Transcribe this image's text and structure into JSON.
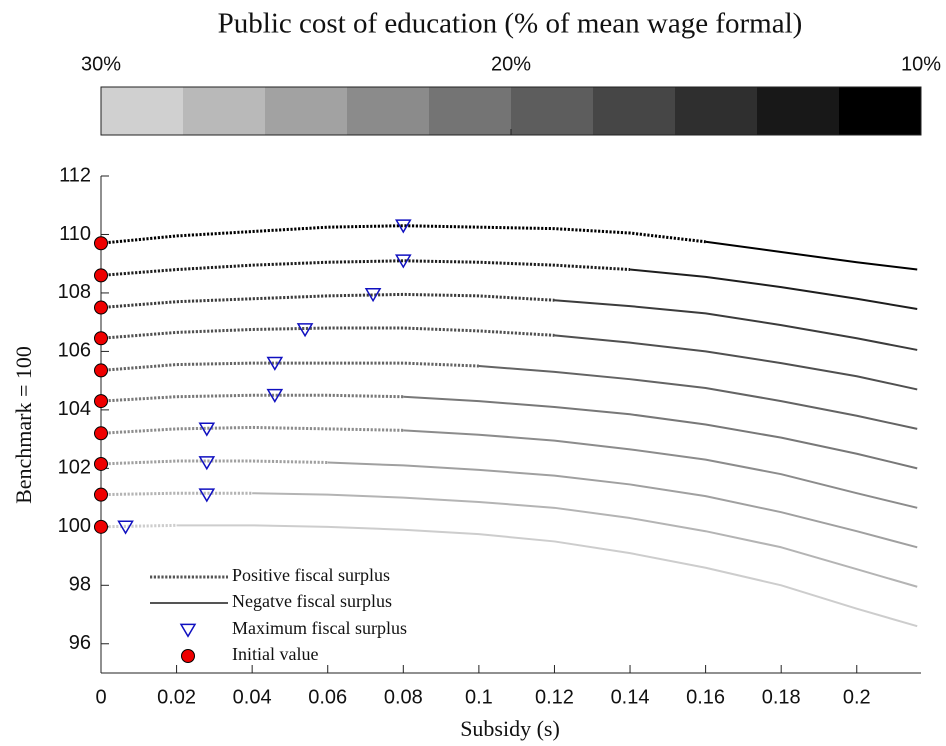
{
  "chart_data": {
    "type": "line",
    "colorbar": {
      "title": "Public cost of education (% of mean wage formal)",
      "lim": [
        30,
        10
      ],
      "ticks": [
        {
          "value": 30,
          "label": "30%"
        },
        {
          "value": 20,
          "label": "20%"
        },
        {
          "value": 10,
          "label": "10%"
        }
      ],
      "colors": [
        "#d0d0d0",
        "#b9b9b9",
        "#a2a2a2",
        "#8b8b8b",
        "#747474",
        "#5d5d5d",
        "#464646",
        "#2f2f2f",
        "#181818",
        "#000000"
      ]
    },
    "xlabel": "Subsidy (s)",
    "ylabel": "Benchmark = 100",
    "xlim": [
      0,
      0.217
    ],
    "ylim": [
      95,
      112
    ],
    "xticks": [
      0,
      0.02,
      0.04,
      0.06,
      0.08,
      0.1,
      0.12,
      0.14,
      0.16,
      0.18,
      0.2
    ],
    "yticks": [
      96,
      98,
      100,
      102,
      104,
      106,
      108,
      110,
      112
    ],
    "x": [
      0,
      0.02,
      0.04,
      0.06,
      0.08,
      0.1,
      0.12,
      0.14,
      0.16,
      0.18,
      0.2,
      0.216
    ],
    "styles": [
      {
        "name": "Positive fiscal surplus",
        "dash": "dotted"
      },
      {
        "name": "Negatve fiscal surplus",
        "dash": "solid"
      }
    ],
    "series": [
      {
        "color": "#cdcdcd",
        "positive": [
          100,
          100.05,
          null,
          null,
          null,
          null,
          null,
          null,
          null,
          null,
          null,
          null
        ],
        "negative": [
          null,
          100.05,
          100.05,
          100,
          99.9,
          99.75,
          99.5,
          99.1,
          98.6,
          98.0,
          97.2,
          96.6
        ]
      },
      {
        "color": "#b4b4b4",
        "positive": [
          101.1,
          101.15,
          101.15,
          null,
          null,
          null,
          null,
          null,
          null,
          null,
          null,
          null
        ],
        "negative": [
          null,
          null,
          101.15,
          101.1,
          101,
          100.85,
          100.65,
          100.3,
          99.85,
          99.3,
          98.55,
          97.95
        ]
      },
      {
        "color": "#a0a0a0",
        "positive": [
          102.15,
          102.25,
          102.25,
          102.2,
          null,
          null,
          null,
          null,
          null,
          null,
          null,
          null
        ],
        "negative": [
          null,
          null,
          null,
          102.2,
          102.1,
          101.95,
          101.75,
          101.45,
          101.05,
          100.5,
          99.85,
          99.3
        ]
      },
      {
        "color": "#8c8c8c",
        "positive": [
          103.2,
          103.35,
          103.4,
          103.35,
          103.3,
          null,
          null,
          null,
          null,
          null,
          null,
          null
        ],
        "negative": [
          null,
          null,
          null,
          null,
          103.3,
          103.15,
          102.95,
          102.65,
          102.3,
          101.8,
          101.15,
          100.65
        ]
      },
      {
        "color": "#787878",
        "positive": [
          104.3,
          104.45,
          104.5,
          104.5,
          104.45,
          null,
          null,
          null,
          null,
          null,
          null,
          null
        ],
        "negative": [
          null,
          null,
          null,
          null,
          104.45,
          104.3,
          104.1,
          103.85,
          103.5,
          103.05,
          102.5,
          102
        ]
      },
      {
        "color": "#646464",
        "positive": [
          105.35,
          105.55,
          105.6,
          105.6,
          105.6,
          105.5,
          null,
          null,
          null,
          null,
          null,
          null
        ],
        "negative": [
          null,
          null,
          null,
          null,
          null,
          105.5,
          105.3,
          105.05,
          104.75,
          104.3,
          103.8,
          103.35
        ]
      },
      {
        "color": "#505050",
        "positive": [
          106.45,
          106.65,
          106.75,
          106.8,
          106.8,
          106.7,
          106.55,
          null,
          null,
          null,
          null,
          null
        ],
        "negative": [
          null,
          null,
          null,
          null,
          null,
          null,
          106.55,
          106.3,
          106,
          105.6,
          105.15,
          104.7
        ]
      },
      {
        "color": "#3c3c3c",
        "positive": [
          107.5,
          107.7,
          107.8,
          107.9,
          107.95,
          107.9,
          107.75,
          null,
          null,
          null,
          null,
          null
        ],
        "negative": [
          null,
          null,
          null,
          null,
          null,
          null,
          107.75,
          107.55,
          107.3,
          106.9,
          106.45,
          106.05
        ]
      },
      {
        "color": "#1e1e1e",
        "positive": [
          108.6,
          108.8,
          108.95,
          109.05,
          109.1,
          109.05,
          108.95,
          108.8,
          null,
          null,
          null,
          null
        ],
        "negative": [
          null,
          null,
          null,
          null,
          null,
          null,
          null,
          108.8,
          108.55,
          108.2,
          107.8,
          107.45
        ]
      },
      {
        "color": "#000000",
        "positive": [
          109.7,
          109.95,
          110.1,
          110.25,
          110.3,
          110.25,
          110.2,
          110.05,
          109.75,
          null,
          null,
          null
        ],
        "negative": [
          null,
          null,
          null,
          null,
          null,
          null,
          null,
          null,
          109.75,
          109.4,
          109.05,
          108.8
        ]
      }
    ],
    "maximum": {
      "name": "Maximum fiscal surplus",
      "color": "#1010c0",
      "x": [
        0.0065,
        0.028,
        0.028,
        0.028,
        0.046,
        0.046,
        0.054,
        0.072,
        0.08,
        0.08
      ],
      "y": [
        100,
        101.1,
        102.2,
        103.35,
        104.5,
        105.6,
        106.75,
        107.95,
        109.1,
        110.3
      ]
    },
    "initial": {
      "name": "Initial value",
      "color": "#ee0000",
      "values": [
        100,
        101.1,
        102.15,
        103.2,
        104.3,
        105.35,
        106.45,
        107.5,
        108.6,
        109.7
      ]
    }
  }
}
